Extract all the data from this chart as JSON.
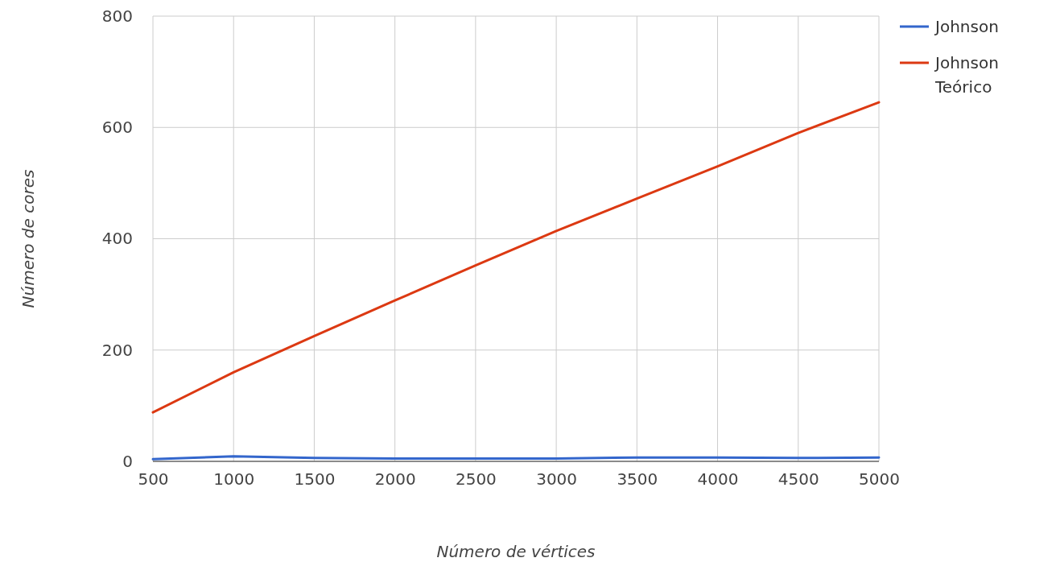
{
  "chart_data": {
    "type": "line",
    "xlabel": "Número de vértices",
    "ylabel": "Número de cores",
    "x": [
      500,
      1000,
      1500,
      2000,
      2500,
      3000,
      3500,
      4000,
      4500,
      5000
    ],
    "series": [
      {
        "name": "Johnson",
        "color": "#3366cc",
        "values": [
          4,
          9,
          6,
          5,
          5,
          5,
          7,
          7,
          6,
          7
        ]
      },
      {
        "name": "Johnson Teórico",
        "color": "#dc3912",
        "values": [
          88,
          160,
          225,
          289,
          352,
          414,
          472,
          530,
          590,
          645
        ]
      }
    ],
    "xlim": [
      500,
      5000
    ],
    "xticks": [
      500,
      1000,
      1500,
      2000,
      2500,
      3000,
      3500,
      4000,
      4500,
      5000
    ],
    "ylim": [
      0,
      800
    ],
    "yticks": [
      0,
      200,
      400,
      600,
      800
    ],
    "grid": true,
    "legend": "top right",
    "marker": "none",
    "line_style": "solid"
  }
}
